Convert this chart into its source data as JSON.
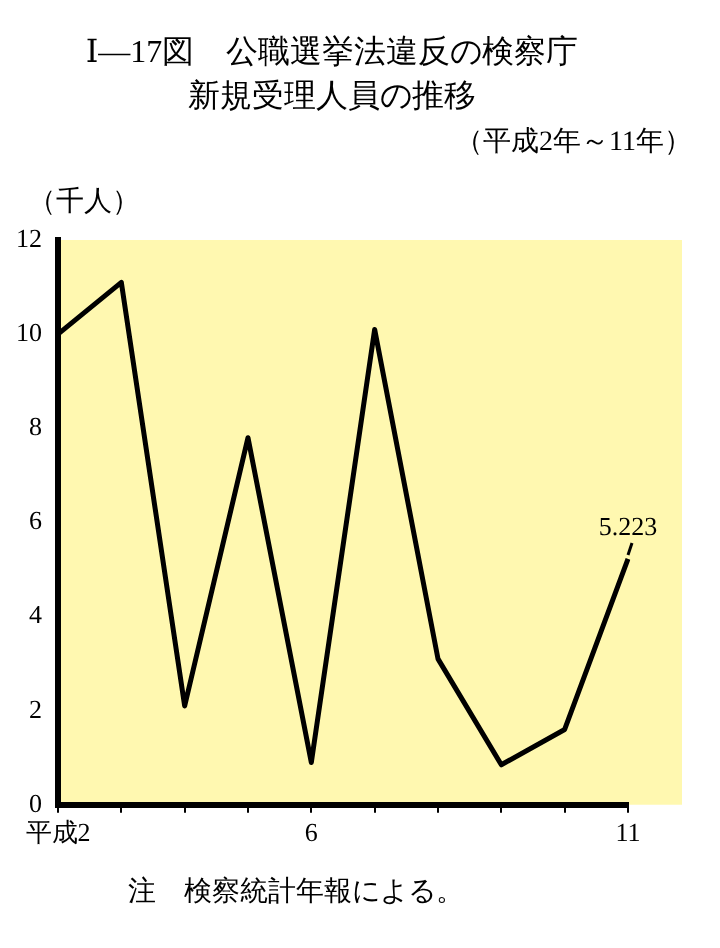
{
  "chart_data": {
    "type": "line",
    "title": "Ⅰ—17図　公職選挙法違反の検察庁新規受理人員の推移",
    "subtitle": "（平成2年～11年）",
    "ylabel": "（千人）",
    "categories": [
      "平成2",
      null,
      null,
      null,
      "6",
      null,
      null,
      null,
      null,
      "11"
    ],
    "series": [
      {
        "color": "#000000",
        "values": [
          10.0,
          11.1,
          2.1,
          7.8,
          0.9,
          10.1,
          3.1,
          0.85,
          1.6,
          5.223
        ],
        "value_labels": [
          null,
          null,
          null,
          null,
          null,
          null,
          null,
          null,
          null,
          "5.223"
        ]
      }
    ],
    "ylim": [
      0,
      12
    ],
    "yticks": [
      0,
      2,
      4,
      6,
      8,
      10,
      12
    ],
    "grid": false,
    "legend": false,
    "marker": "none",
    "line_style": "solid",
    "annotations": [
      "注　検察統計年報による。"
    ]
  }
}
